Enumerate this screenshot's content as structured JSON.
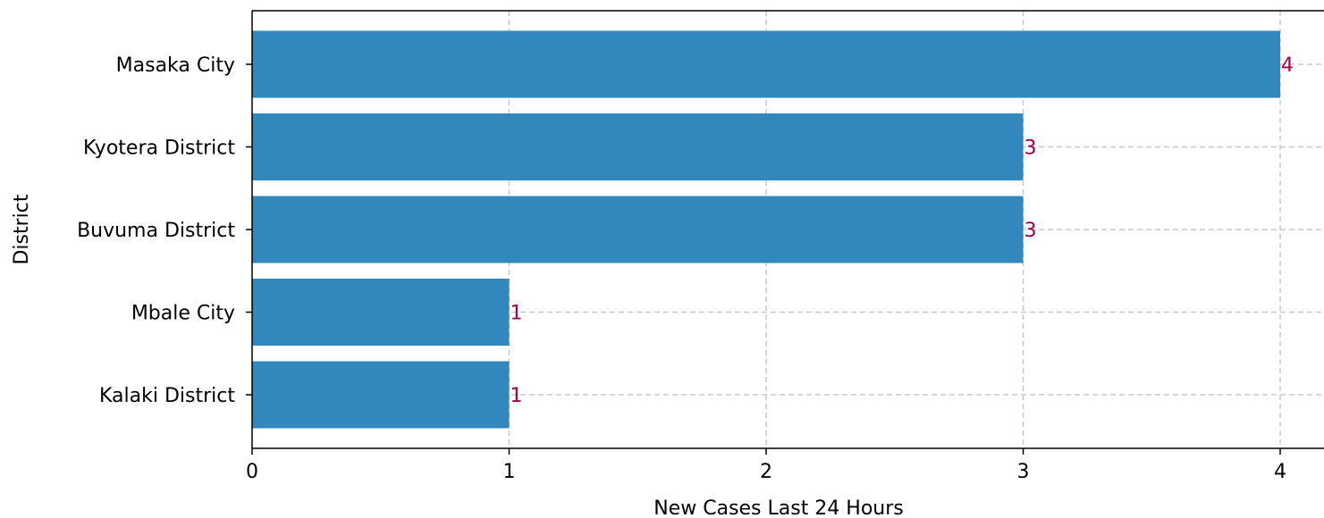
{
  "chart_data": {
    "type": "bar",
    "orientation": "horizontal",
    "categories": [
      "Masaka City",
      "Kyotera District",
      "Buvuma District",
      "Mbale City",
      "Kalaki District"
    ],
    "values": [
      4,
      3,
      3,
      1,
      1
    ],
    "title": "",
    "xlabel": "New Cases Last 24 Hours",
    "ylabel": "District",
    "xlim": [
      0,
      4.17
    ],
    "xticks": [
      0,
      1,
      2,
      3,
      4
    ],
    "grid": true,
    "bar_color": "#3288bd",
    "label_color": "#a0004f"
  }
}
